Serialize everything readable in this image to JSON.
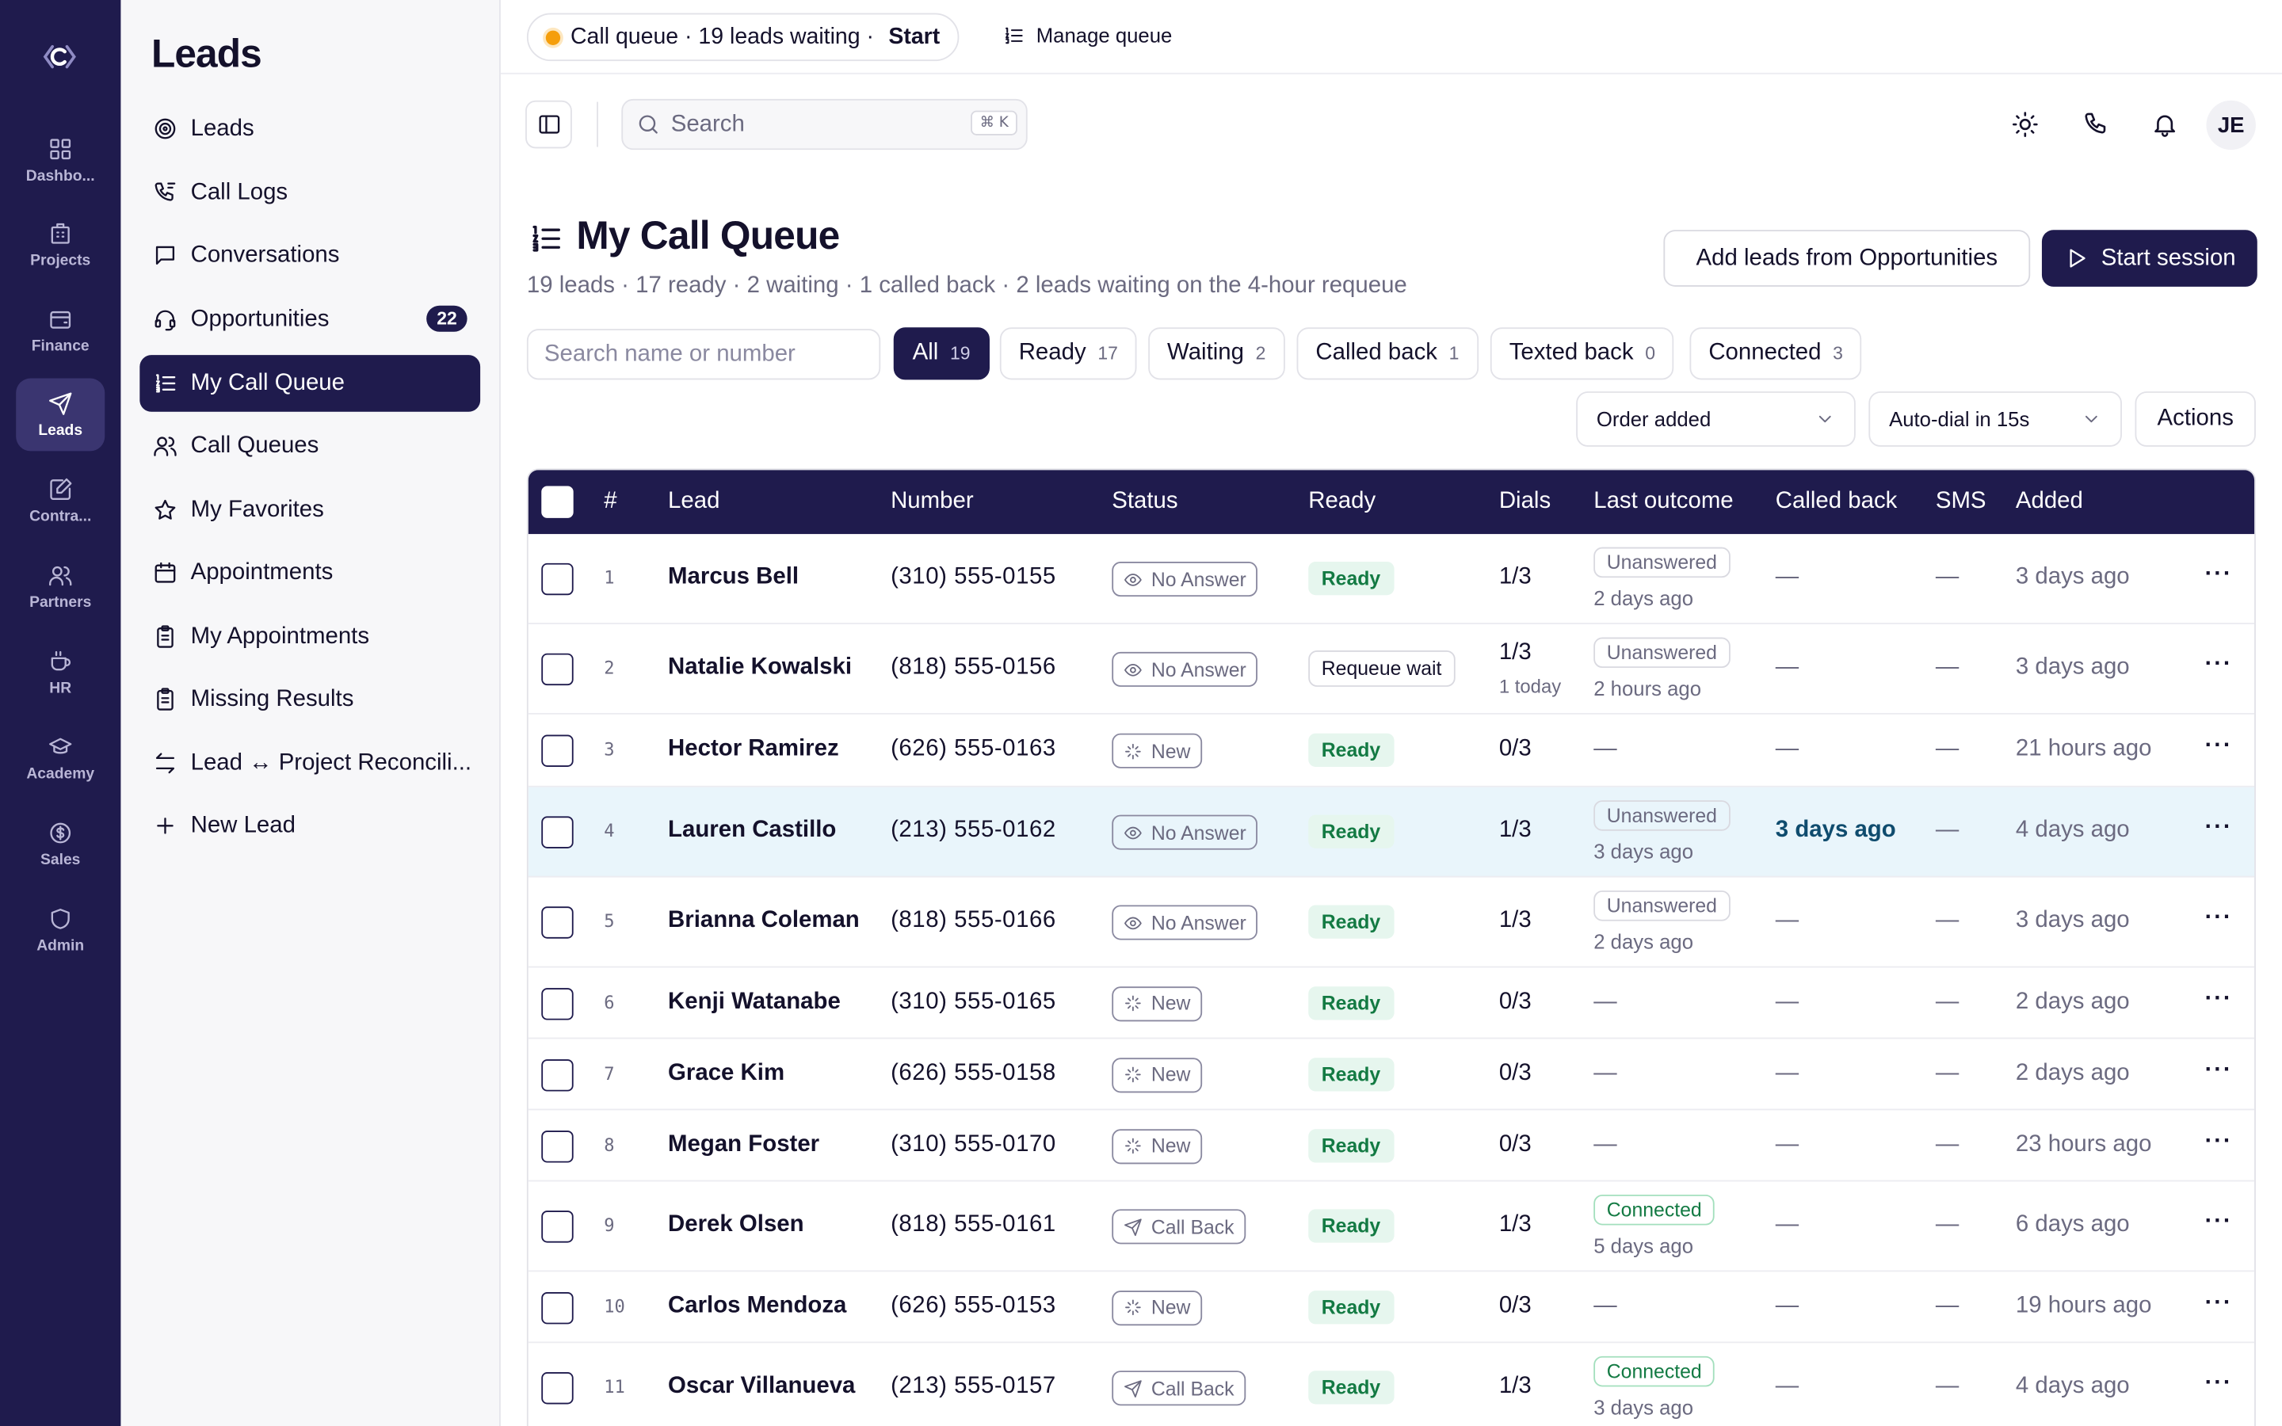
{
  "colors": {
    "sidebar_bg": "#1f1b4d",
    "accent": "#1f1b4d",
    "ready_green": "#137a43",
    "queue_dot": "#f59e0b",
    "highlight_row": "#e9f5fb"
  },
  "rail": {
    "items": [
      {
        "label": "Dashbo...",
        "icon": "grid-icon"
      },
      {
        "label": "Projects",
        "icon": "building-icon"
      },
      {
        "label": "Finance",
        "icon": "wallet-icon"
      },
      {
        "label": "Leads",
        "icon": "send-icon"
      },
      {
        "label": "Contra...",
        "icon": "edit-doc-icon"
      },
      {
        "label": "Partners",
        "icon": "users-icon"
      },
      {
        "label": "HR",
        "icon": "coffee-icon"
      },
      {
        "label": "Academy",
        "icon": "graduation-cap-icon"
      },
      {
        "label": "Sales",
        "icon": "dollar-icon"
      },
      {
        "label": "Admin",
        "icon": "shield-icon"
      }
    ]
  },
  "nav": {
    "title": "Leads",
    "items": [
      {
        "label": "Leads",
        "icon": "target-icon"
      },
      {
        "label": "Call Logs",
        "icon": "phone-log-icon"
      },
      {
        "label": "Conversations",
        "icon": "chat-icon"
      },
      {
        "label": "Opportunities",
        "icon": "headset-icon",
        "badge": "22"
      },
      {
        "label": "My Call Queue",
        "icon": "list-ordered-icon"
      },
      {
        "label": "Call Queues",
        "icon": "users-icon"
      },
      {
        "label": "My Favorites",
        "icon": "star-icon"
      },
      {
        "label": "Appointments",
        "icon": "calendar-icon"
      },
      {
        "label": "My Appointments",
        "icon": "clipboard-icon"
      },
      {
        "label": "Missing Results",
        "icon": "clipboard-icon"
      },
      {
        "label": "Lead ↔ Project Reconcili...",
        "icon": "arrows-icon"
      },
      {
        "label": "New Lead",
        "icon": "plus-icon"
      }
    ]
  },
  "topbar": {
    "queue_text": "Call queue · 19 leads waiting ·",
    "queue_start": "Start",
    "manage": "Manage queue"
  },
  "header": {
    "search_placeholder": "Search",
    "search_kbd": "⌘ K",
    "avatar": "JE"
  },
  "page": {
    "title": "My Call Queue",
    "subtitle": "19 leads · 17 ready · 2 waiting · 1 called back · 2 leads waiting on the 4-hour requeue",
    "add_button": "Add leads from Opportunities",
    "start_button": "Start session",
    "filter_placeholder": "Search name or number",
    "chips": [
      {
        "label": "All",
        "count": "19"
      },
      {
        "label": "Ready",
        "count": "17"
      },
      {
        "label": "Waiting",
        "count": "2"
      },
      {
        "label": "Called back",
        "count": "1"
      },
      {
        "label": "Texted back",
        "count": "0"
      },
      {
        "label": "Connected",
        "count": "3"
      }
    ],
    "sort_select": "Order added",
    "autodial_select": "Auto-dial in 15s",
    "actions": "Actions"
  },
  "table": {
    "columns": [
      "#",
      "Lead",
      "Number",
      "Status",
      "Ready",
      "Dials",
      "Last outcome",
      "Called back",
      "SMS",
      "Added"
    ],
    "rows": [
      {
        "idx": "1",
        "name": "Marcus Bell",
        "number": "(310) 555-0155",
        "status": "No Answer",
        "ready": "Ready",
        "dials": "1/3",
        "dials_sub": "",
        "outcome": "Unanswered",
        "outcome_sub": "2 days ago",
        "called_back": "—",
        "sms": "—",
        "added": "3 days ago"
      },
      {
        "idx": "2",
        "name": "Natalie Kowalski",
        "number": "(818) 555-0156",
        "status": "No Answer",
        "ready": "Requeue wait",
        "dials": "1/3",
        "dials_sub": "1 today",
        "outcome": "Unanswered",
        "outcome_sub": "2 hours ago",
        "called_back": "—",
        "sms": "—",
        "added": "3 days ago"
      },
      {
        "idx": "3",
        "name": "Hector Ramirez",
        "number": "(626) 555-0163",
        "status": "New",
        "ready": "Ready",
        "dials": "0/3",
        "dials_sub": "",
        "outcome": "—",
        "outcome_sub": "",
        "called_back": "—",
        "sms": "—",
        "added": "21 hours ago"
      },
      {
        "idx": "4",
        "name": "Lauren Castillo",
        "number": "(213) 555-0162",
        "status": "No Answer",
        "ready": "Ready",
        "dials": "1/3",
        "dials_sub": "",
        "outcome": "Unanswered",
        "outcome_sub": "3 days ago",
        "called_back": "3 days ago",
        "sms": "—",
        "added": "4 days ago"
      },
      {
        "idx": "5",
        "name": "Brianna Coleman",
        "number": "(818) 555-0166",
        "status": "No Answer",
        "ready": "Ready",
        "dials": "1/3",
        "dials_sub": "",
        "outcome": "Unanswered",
        "outcome_sub": "2 days ago",
        "called_back": "—",
        "sms": "—",
        "added": "3 days ago"
      },
      {
        "idx": "6",
        "name": "Kenji Watanabe",
        "number": "(310) 555-0165",
        "status": "New",
        "ready": "Ready",
        "dials": "0/3",
        "dials_sub": "",
        "outcome": "—",
        "outcome_sub": "",
        "called_back": "—",
        "sms": "—",
        "added": "2 days ago"
      },
      {
        "idx": "7",
        "name": "Grace Kim",
        "number": "(626) 555-0158",
        "status": "New",
        "ready": "Ready",
        "dials": "0/3",
        "dials_sub": "",
        "outcome": "—",
        "outcome_sub": "",
        "called_back": "—",
        "sms": "—",
        "added": "2 days ago"
      },
      {
        "idx": "8",
        "name": "Megan Foster",
        "number": "(310) 555-0170",
        "status": "New",
        "ready": "Ready",
        "dials": "0/3",
        "dials_sub": "",
        "outcome": "—",
        "outcome_sub": "",
        "called_back": "—",
        "sms": "—",
        "added": "23 hours ago"
      },
      {
        "idx": "9",
        "name": "Derek Olsen",
        "number": "(818) 555-0161",
        "status": "Call Back",
        "ready": "Ready",
        "dials": "1/3",
        "dials_sub": "",
        "outcome": "Connected",
        "outcome_sub": "5 days ago",
        "called_back": "—",
        "sms": "—",
        "added": "6 days ago"
      },
      {
        "idx": "10",
        "name": "Carlos Mendoza",
        "number": "(626) 555-0153",
        "status": "New",
        "ready": "Ready",
        "dials": "0/3",
        "dials_sub": "",
        "outcome": "—",
        "outcome_sub": "",
        "called_back": "—",
        "sms": "—",
        "added": "19 hours ago"
      },
      {
        "idx": "11",
        "name": "Oscar Villanueva",
        "number": "(213) 555-0157",
        "status": "Call Back",
        "ready": "Ready",
        "dials": "1/3",
        "dials_sub": "",
        "outcome": "Connected",
        "outcome_sub": "3 days ago",
        "called_back": "—",
        "sms": "—",
        "added": "4 days ago"
      }
    ]
  }
}
